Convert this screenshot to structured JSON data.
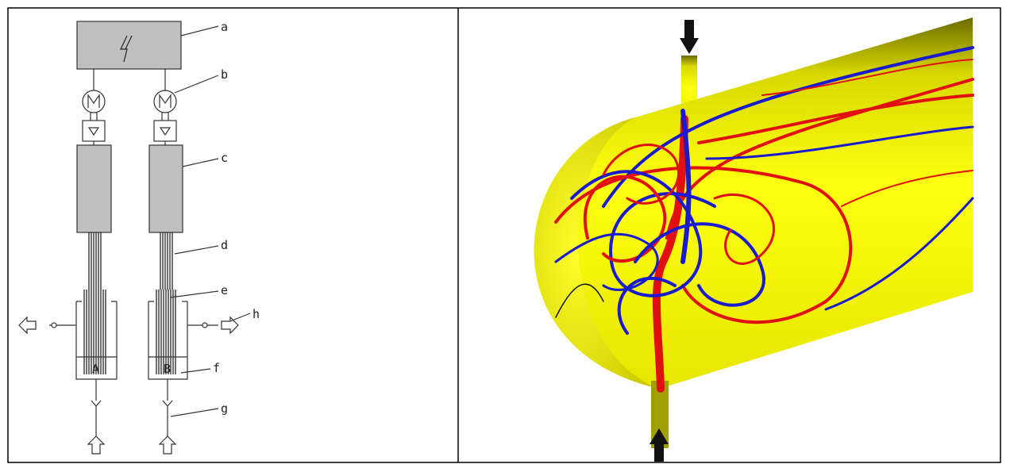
{
  "labels": [
    "a",
    "b",
    "c",
    "d",
    "e",
    "f",
    "g",
    "h"
  ],
  "vessels": [
    "A",
    "B"
  ]
}
